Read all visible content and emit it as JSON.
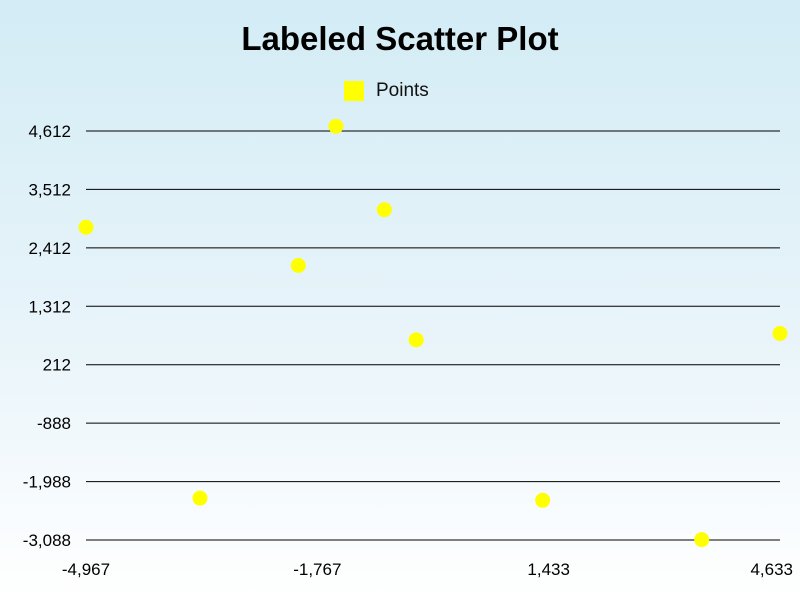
{
  "chart_data": {
    "type": "scatter",
    "title": "Labeled Scatter Plot",
    "xlabel": "",
    "ylabel": "",
    "legend": {
      "position": "top-center",
      "entries": [
        "Points"
      ]
    },
    "grid": {
      "horizontal": true,
      "vertical": false
    },
    "xlim": [
      -4967,
      4633
    ],
    "ylim": [
      -3088,
      4612
    ],
    "x_ticks": [
      -4967,
      -1767,
      1433,
      4633
    ],
    "x_tick_labels": [
      "-4,967",
      "-1,767",
      "1,433",
      "4,633"
    ],
    "y_ticks": [
      4612,
      3512,
      2412,
      1312,
      212,
      -888,
      -1988,
      -3088
    ],
    "y_tick_labels": [
      "4,612",
      "3,512",
      "2,412",
      "1,312",
      "212",
      "-888",
      "-1,988",
      "-3,088"
    ],
    "series": [
      {
        "name": "Points",
        "color": "#ffff00",
        "points": [
          {
            "x": -4967,
            "y": 2800
          },
          {
            "x": -3390,
            "y": -2300
          },
          {
            "x": -2030,
            "y": 2080
          },
          {
            "x": -1510,
            "y": 4700
          },
          {
            "x": -840,
            "y": 3130
          },
          {
            "x": -400,
            "y": 680
          },
          {
            "x": 1350,
            "y": -2340
          },
          {
            "x": 3550,
            "y": -3080
          },
          {
            "x": 4633,
            "y": 800
          }
        ]
      }
    ]
  }
}
